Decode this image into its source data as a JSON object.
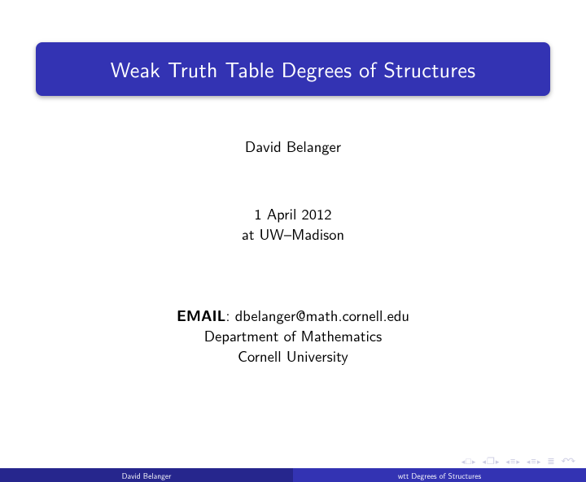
{
  "title": "Weak Truth Table Degrees of Structures",
  "author": "David Belanger",
  "date": "1 April 2012",
  "location": "at UW–Madison",
  "email_label": "EMAIL",
  "email_sep": ": ",
  "email": "dbelanger@math.cornell.edu",
  "department": "Department of Mathematics",
  "university": "Cornell University",
  "footer": {
    "left": "David Belanger",
    "right": "wtt Degrees of Structures"
  },
  "colors": {
    "title_bg": "#3333b3",
    "title_text": "#ffffff",
    "body_text": "#000000",
    "foot_left_bg": "#26268d",
    "foot_right_bg": "#3333b3",
    "nav_color": "#c3c3de"
  },
  "typography": {
    "title_fontsize": 26,
    "body_fontsize": 18.5,
    "footer_fontsize": 9.5
  }
}
